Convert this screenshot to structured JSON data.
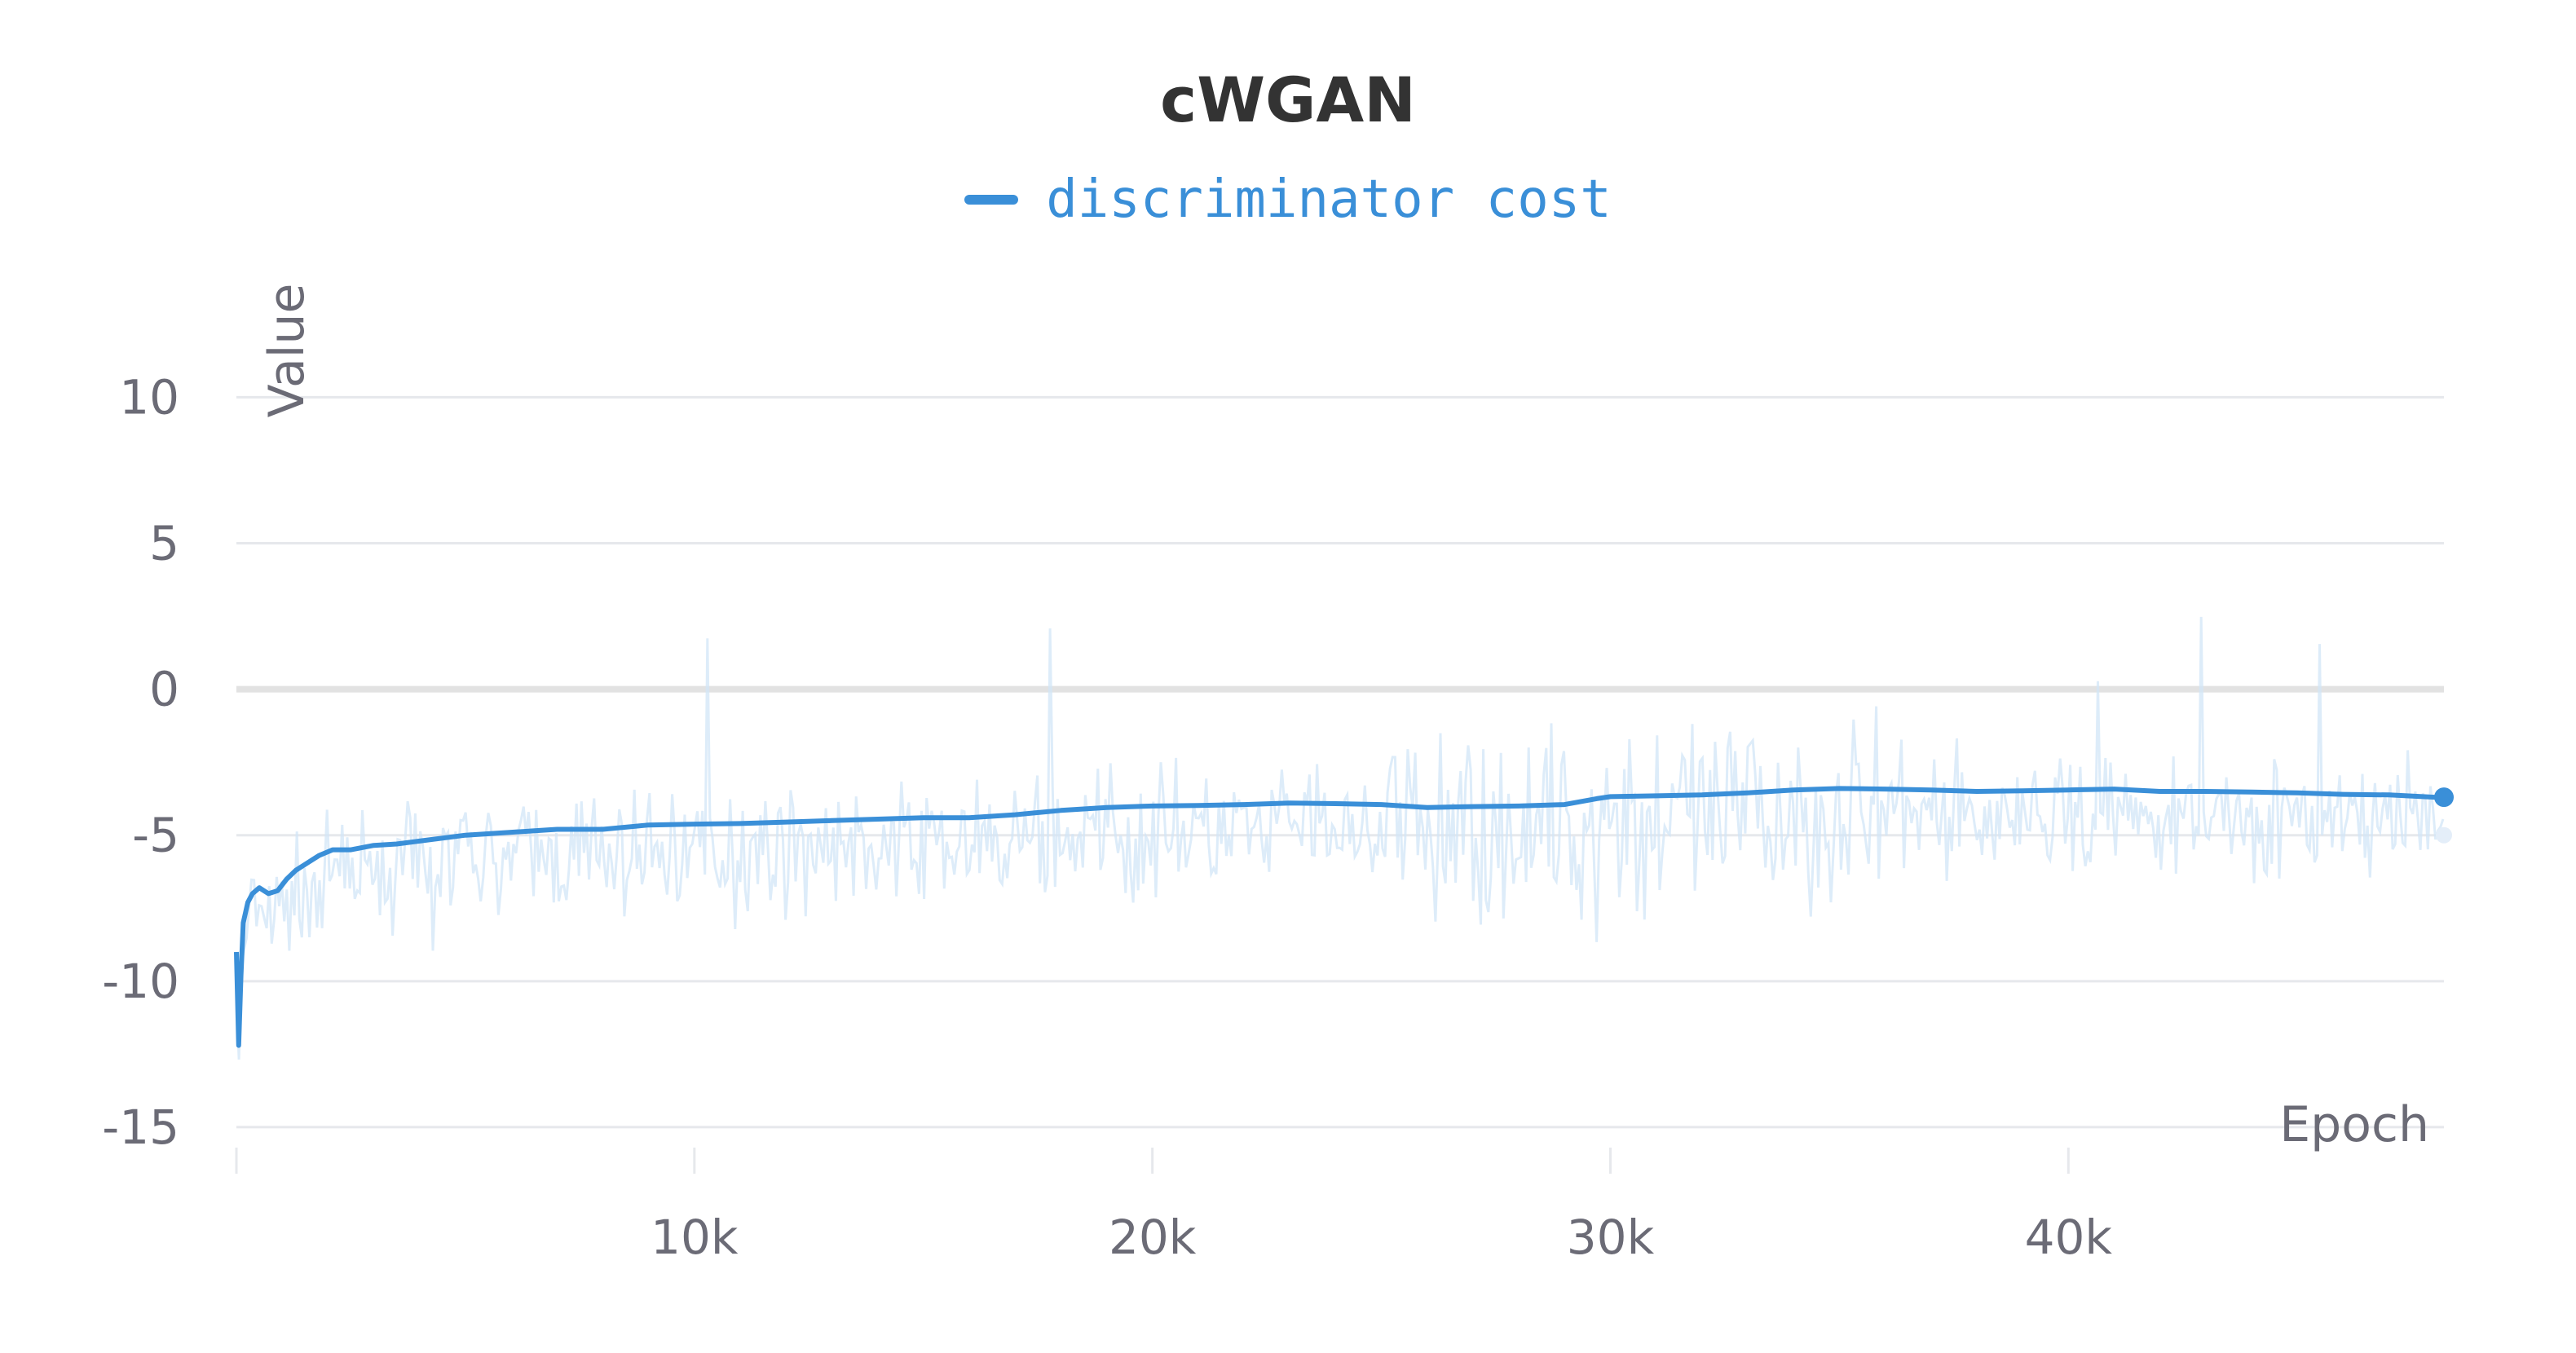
{
  "chart_data": {
    "type": "line",
    "title": "cWGAN",
    "xlabel": "Epoch",
    "ylabel": "Value",
    "xlim": [
      0,
      48200
    ],
    "ylim": [
      -15.7,
      12.3
    ],
    "yticks": [
      10,
      5,
      0,
      -5,
      -10,
      -15
    ],
    "ytick_labels": [
      "10",
      "5",
      "0",
      "-5",
      "-10",
      "-15"
    ],
    "xticks": [
      10000,
      20000,
      30000,
      40000
    ],
    "xtick_labels": [
      "10k",
      "20k",
      "30k",
      "40k"
    ],
    "grid": true,
    "legend_position": "top-center",
    "colors": {
      "series": "#3a8fd8",
      "raw": "#d2e5f7",
      "grid": "#e6e8ec",
      "zero": "#e2e2e2",
      "title": "#333333",
      "axis_text": "#6b6b76"
    },
    "series": [
      {
        "name": "discriminator cost",
        "x": [
          0,
          50,
          100,
          150,
          250,
          350,
          500,
          700,
          900,
          1100,
          1300,
          1500,
          1800,
          2100,
          2500,
          3000,
          3500,
          4000,
          5000,
          6000,
          7000,
          8000,
          9000,
          10000,
          11000,
          12000,
          13000,
          14000,
          15000,
          16000,
          17000,
          18000,
          19000,
          20000,
          21000,
          22000,
          23000,
          24000,
          25000,
          26000,
          27000,
          28000,
          29000,
          29700,
          30000,
          31000,
          32000,
          33000,
          34000,
          35000,
          36000,
          37000,
          38000,
          39000,
          40000,
          41000,
          42000,
          43000,
          44000,
          45000,
          46000,
          47000,
          48000
        ],
        "values": [
          -9.0,
          -12.2,
          -9.8,
          -8.0,
          -7.3,
          -7.0,
          -6.8,
          -7.0,
          -6.9,
          -6.5,
          -6.2,
          -6.0,
          -5.7,
          -5.5,
          -5.5,
          -5.35,
          -5.3,
          -5.2,
          -5.0,
          -4.9,
          -4.8,
          -4.8,
          -4.65,
          -4.62,
          -4.6,
          -4.55,
          -4.5,
          -4.45,
          -4.4,
          -4.4,
          -4.3,
          -4.15,
          -4.05,
          -4.0,
          -3.98,
          -3.95,
          -3.9,
          -3.92,
          -3.95,
          -4.05,
          -4.02,
          -4.0,
          -3.95,
          -3.75,
          -3.68,
          -3.65,
          -3.62,
          -3.55,
          -3.45,
          -3.4,
          -3.42,
          -3.45,
          -3.5,
          -3.48,
          -3.45,
          -3.42,
          -3.5,
          -3.5,
          -3.52,
          -3.55,
          -3.6,
          -3.62,
          -3.7
        ]
      }
    ]
  }
}
